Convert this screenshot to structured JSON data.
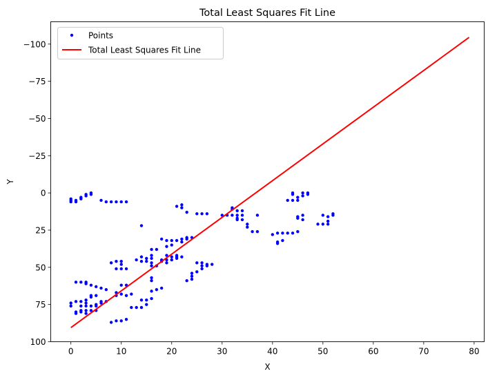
{
  "chart_data": {
    "type": "scatter",
    "title": "Total Least Squares Fit Line",
    "xlabel": "X",
    "ylabel": "Y",
    "xlim": [
      -4,
      82
    ],
    "ylim": [
      100,
      -115
    ],
    "y_inverted": true,
    "xticks": [
      0,
      10,
      20,
      30,
      40,
      50,
      60,
      70,
      80
    ],
    "yticks": [
      100,
      75,
      50,
      25,
      0,
      -25,
      -50,
      -75,
      -100
    ],
    "ytick_labels": [
      "100",
      "75",
      "50",
      "25",
      "0",
      "−25",
      "−50",
      "−75",
      "−100"
    ],
    "grid": false,
    "legend": "top-left",
    "colors": {
      "points": "#0000ff",
      "fit_line": "#ff0000"
    },
    "series": [
      {
        "name": "Points",
        "kind": "scatter",
        "points": [
          [
            0,
            4
          ],
          [
            0,
            5
          ],
          [
            0,
            6
          ],
          [
            1,
            5
          ],
          [
            1,
            6
          ],
          [
            2,
            3
          ],
          [
            2,
            4
          ],
          [
            3,
            1
          ],
          [
            3,
            2
          ],
          [
            4,
            0
          ],
          [
            4,
            1
          ],
          [
            6,
            5
          ],
          [
            7,
            6
          ],
          [
            8,
            6
          ],
          [
            9,
            6
          ],
          [
            10,
            6
          ],
          [
            11,
            6
          ],
          [
            1,
            60
          ],
          [
            2,
            60
          ],
          [
            3,
            60
          ],
          [
            3,
            61
          ],
          [
            4,
            62
          ],
          [
            5,
            63
          ],
          [
            6,
            64
          ],
          [
            7,
            65
          ],
          [
            0,
            74
          ],
          [
            0,
            76
          ],
          [
            1,
            73
          ],
          [
            1,
            80
          ],
          [
            1,
            81
          ],
          [
            2,
            73
          ],
          [
            2,
            76
          ],
          [
            2,
            79
          ],
          [
            2,
            80
          ],
          [
            3,
            72
          ],
          [
            3,
            74
          ],
          [
            3,
            76
          ],
          [
            3,
            79
          ],
          [
            3,
            81
          ],
          [
            4,
            69
          ],
          [
            4,
            70
          ],
          [
            4,
            76
          ],
          [
            4,
            79
          ],
          [
            5,
            69
          ],
          [
            5,
            75
          ],
          [
            5,
            76
          ],
          [
            5,
            79
          ],
          [
            6,
            73
          ],
          [
            6,
            74
          ],
          [
            7,
            73
          ],
          [
            8,
            47
          ],
          [
            8,
            87
          ],
          [
            9,
            46
          ],
          [
            9,
            51
          ],
          [
            9,
            67
          ],
          [
            9,
            69
          ],
          [
            9,
            86
          ],
          [
            10,
            46
          ],
          [
            10,
            48
          ],
          [
            10,
            51
          ],
          [
            10,
            62
          ],
          [
            10,
            68
          ],
          [
            10,
            86
          ],
          [
            11,
            51
          ],
          [
            11,
            62
          ],
          [
            11,
            69
          ],
          [
            11,
            85
          ],
          [
            12,
            68
          ],
          [
            12,
            77
          ],
          [
            13,
            45
          ],
          [
            13,
            77
          ],
          [
            14,
            22
          ],
          [
            14,
            43
          ],
          [
            14,
            46
          ],
          [
            14,
            72
          ],
          [
            14,
            77
          ],
          [
            15,
            44
          ],
          [
            15,
            46
          ],
          [
            15,
            72
          ],
          [
            15,
            75
          ],
          [
            16,
            38
          ],
          [
            16,
            42
          ],
          [
            16,
            44
          ],
          [
            16,
            47
          ],
          [
            16,
            49
          ],
          [
            16,
            57
          ],
          [
            16,
            59
          ],
          [
            16,
            66
          ],
          [
            16,
            71
          ],
          [
            17,
            38
          ],
          [
            17,
            49
          ],
          [
            17,
            65
          ],
          [
            18,
            31
          ],
          [
            18,
            45
          ],
          [
            18,
            46
          ],
          [
            18,
            64
          ],
          [
            19,
            32
          ],
          [
            19,
            36
          ],
          [
            19,
            42
          ],
          [
            19,
            45
          ],
          [
            19,
            47
          ],
          [
            20,
            32
          ],
          [
            20,
            35
          ],
          [
            20,
            43
          ],
          [
            20,
            45
          ],
          [
            21,
            9
          ],
          [
            21,
            32
          ],
          [
            21,
            42
          ],
          [
            21,
            43
          ],
          [
            21,
            44
          ],
          [
            22,
            10
          ],
          [
            22,
            8
          ],
          [
            22,
            31
          ],
          [
            22,
            33
          ],
          [
            22,
            43
          ],
          [
            23,
            13
          ],
          [
            23,
            30
          ],
          [
            23,
            31
          ],
          [
            23,
            59
          ],
          [
            24,
            30
          ],
          [
            24,
            54
          ],
          [
            24,
            56
          ],
          [
            24,
            58
          ],
          [
            25,
            14
          ],
          [
            25,
            47
          ],
          [
            25,
            53
          ],
          [
            26,
            14
          ],
          [
            26,
            47
          ],
          [
            26,
            49
          ],
          [
            26,
            51
          ],
          [
            27,
            14
          ],
          [
            27,
            48
          ],
          [
            27,
            49
          ],
          [
            28,
            48
          ],
          [
            30,
            15
          ],
          [
            31,
            15
          ],
          [
            32,
            10
          ],
          [
            32,
            11
          ],
          [
            32,
            15
          ],
          [
            33,
            12
          ],
          [
            33,
            15
          ],
          [
            33,
            17
          ],
          [
            33,
            18
          ],
          [
            34,
            12
          ],
          [
            34,
            15
          ],
          [
            34,
            18
          ],
          [
            35,
            21
          ],
          [
            35,
            23
          ],
          [
            36,
            26
          ],
          [
            37,
            15
          ],
          [
            37,
            26
          ],
          [
            40,
            28
          ],
          [
            41,
            27
          ],
          [
            41,
            33
          ],
          [
            41,
            34
          ],
          [
            42,
            27
          ],
          [
            42,
            32
          ],
          [
            43,
            5
          ],
          [
            43,
            27
          ],
          [
            44,
            0
          ],
          [
            44,
            1
          ],
          [
            44,
            5
          ],
          [
            44,
            27
          ],
          [
            45,
            3
          ],
          [
            45,
            5
          ],
          [
            45,
            16
          ],
          [
            45,
            17
          ],
          [
            45,
            26
          ],
          [
            46,
            0
          ],
          [
            46,
            2
          ],
          [
            46,
            15
          ],
          [
            46,
            18
          ],
          [
            47,
            0
          ],
          [
            47,
            1
          ],
          [
            49,
            21
          ],
          [
            50,
            15
          ],
          [
            50,
            21
          ],
          [
            51,
            16
          ],
          [
            51,
            19
          ],
          [
            51,
            21
          ],
          [
            52,
            14
          ],
          [
            52,
            15
          ]
        ]
      },
      {
        "name": "Total Least Squares Fit Line",
        "kind": "line",
        "points": [
          [
            0,
            90.5
          ],
          [
            79,
            -104.5
          ]
        ]
      }
    ]
  }
}
